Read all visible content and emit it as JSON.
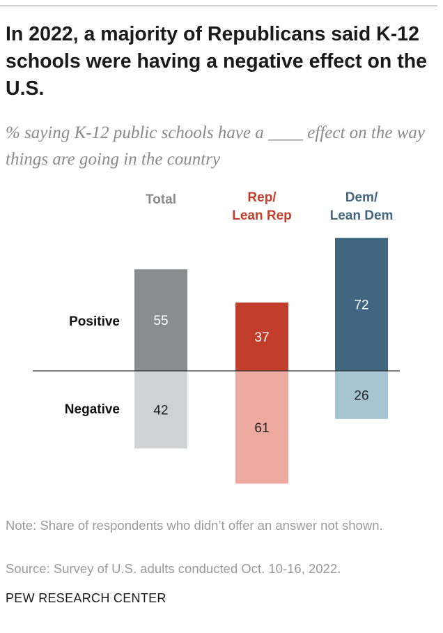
{
  "title": "In 2022, a majority of Republicans said K-12 schools were having a negative effect on the U.S.",
  "subtitle": "% saying K-12 public schools have a ____ effect on the way things are going in the country",
  "note": "Note: Share of respondents who didn’t offer an answer not shown.",
  "source": "Source: Survey of U.S. adults conducted Oct. 10-16, 2022.",
  "brand": "PEW RESEARCH CENTER",
  "chart_data": {
    "type": "bar",
    "orientation": "diverging-vertical",
    "categories": [
      {
        "label_lines": [
          "Total"
        ],
        "color": "#8a8a8a"
      },
      {
        "label_lines": [
          "Rep/",
          "Lean Rep"
        ],
        "color": "#c33d2b"
      },
      {
        "label_lines": [
          "Dem/",
          "Lean Dem"
        ],
        "color": "#41667f"
      }
    ],
    "series": [
      {
        "name": "Positive",
        "values": [
          55,
          37,
          72
        ],
        "colors": [
          "#8b8c8e",
          "#c33d2b",
          "#41667f"
        ],
        "text_colors": [
          "#ffffff",
          "#ffffff",
          "#ffffff"
        ]
      },
      {
        "name": "Negative",
        "values": [
          42,
          61,
          26
        ],
        "colors": [
          "#d1d2d4",
          "#eea9a1",
          "#a7c4d3"
        ],
        "text_colors": [
          "#222222",
          "#222222",
          "#222222"
        ]
      }
    ],
    "baseline": 0,
    "grid": false,
    "legend": "row labels at left"
  }
}
